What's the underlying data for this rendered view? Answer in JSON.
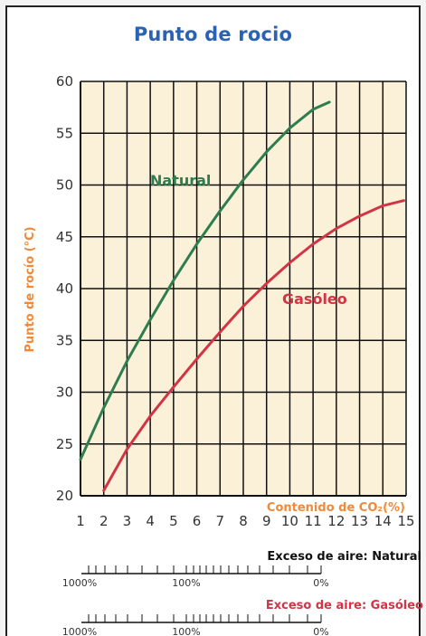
{
  "chart_data": {
    "type": "line",
    "title": "Punto de rocio",
    "xlabel": "Contenido de CO₂(%)",
    "ylabel": "Punto de rocío (°C)",
    "xlim": [
      1,
      15
    ],
    "ylim": [
      20,
      60
    ],
    "grid": true,
    "x_ticks": [
      "1",
      "2",
      "3",
      "4",
      "5",
      "6",
      "7",
      "8",
      "9",
      "10",
      "11",
      "12",
      "13",
      "14",
      "15"
    ],
    "y_ticks": [
      "20",
      "25",
      "30",
      "35",
      "40",
      "45",
      "50",
      "55",
      "60"
    ],
    "series": [
      {
        "name": "Natural",
        "color": "#2e7d4e",
        "x": [
          1,
          2,
          3,
          4,
          5,
          6,
          7,
          8,
          9,
          10,
          11,
          11.7
        ],
        "y": [
          23.5,
          28.5,
          33.0,
          37.0,
          40.8,
          44.3,
          47.5,
          50.5,
          53.2,
          55.5,
          57.3,
          58.0
        ]
      },
      {
        "name": "Gasóleo",
        "color": "#d13545",
        "x": [
          2,
          3,
          4,
          5,
          6,
          7,
          8,
          9,
          10,
          11,
          12,
          13,
          14,
          14.9
        ],
        "y": [
          20.5,
          24.5,
          27.7,
          30.5,
          33.2,
          35.8,
          38.3,
          40.5,
          42.5,
          44.3,
          45.8,
          47.0,
          48.0,
          48.5
        ]
      }
    ],
    "secondary_scales": [
      {
        "label": "Exceso de aire: Natural",
        "label_color": "#111111",
        "tick_labels": [
          "1000%",
          "100%",
          "0%"
        ]
      },
      {
        "label": "Exceso de aire: Gasóleo",
        "label_color": "#d13545",
        "tick_labels": [
          "1000%",
          "100%",
          "0%"
        ]
      }
    ],
    "colors": {
      "title": "#2b63b3",
      "axis_label": "#f08a3a",
      "plot_bg": "#fbf1d8",
      "grid": "#111111"
    }
  }
}
